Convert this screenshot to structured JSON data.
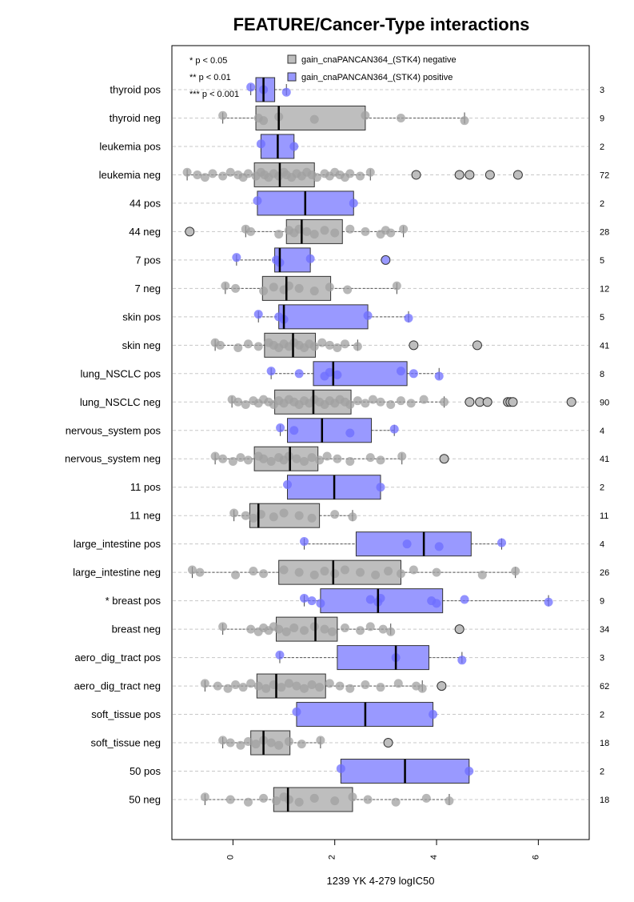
{
  "chart_data": {
    "type": "box",
    "title": "FEATURE/Cancer-Type interactions",
    "xlabel": "1239 YK 4-279 logIC50",
    "ylabel": "",
    "xlim": [
      -1.2,
      7.0
    ],
    "xticks": [
      0,
      2,
      4,
      6
    ],
    "orientation": "horizontal",
    "grid": "horizontal dashed",
    "legend_position": "top",
    "significance_key": [
      "* p < 0.05",
      "** p < 0.01",
      "*** p < 0.001"
    ],
    "series": [
      {
        "name": "gain_cnaPANCAN364_(STK4) negative",
        "color": "#bebebe"
      },
      {
        "name": "gain_cnaPANCAN364_(STK4) positive",
        "color": "#9999ff"
      }
    ],
    "rows": [
      {
        "label": "thyroid pos",
        "n": "3",
        "series": 1,
        "box": [
          0.35,
          0.45,
          0.6,
          0.82,
          1.05
        ],
        "points": [
          0.35,
          0.6,
          1.05
        ],
        "outliers": []
      },
      {
        "label": "thyroid neg",
        "n": "9",
        "series": 0,
        "box": [
          -0.2,
          0.45,
          0.9,
          2.6,
          4.55
        ],
        "points": [
          -0.2,
          0.5,
          0.6,
          0.9,
          1.6,
          2.6,
          3.3,
          4.55
        ],
        "outliers": []
      },
      {
        "label": "leukemia pos",
        "n": "2",
        "series": 1,
        "box": [
          0.55,
          0.55,
          0.88,
          1.2,
          1.2
        ],
        "points": [
          0.55,
          1.2
        ],
        "outliers": []
      },
      {
        "label": "leukemia neg",
        "n": "72",
        "series": 0,
        "box": [
          -0.9,
          0.42,
          0.92,
          1.6,
          2.7
        ],
        "points": [
          -0.9,
          -0.7,
          -0.55,
          -0.4,
          -0.2,
          -0.05,
          0.1,
          0.2,
          0.3,
          0.45,
          0.55,
          0.62,
          0.7,
          0.8,
          0.9,
          1.0,
          1.05,
          1.15,
          1.25,
          1.35,
          1.45,
          1.55,
          1.65,
          1.8,
          1.9,
          2.0,
          2.1,
          2.2,
          2.3,
          2.5,
          2.7
        ],
        "outliers": [
          3.6,
          4.45,
          4.65,
          5.05,
          5.6
        ]
      },
      {
        "label": "44 pos",
        "n": "2",
        "series": 1,
        "box": [
          0.48,
          0.48,
          1.42,
          2.37,
          2.37
        ],
        "points": [
          0.48,
          2.37
        ],
        "outliers": []
      },
      {
        "label": "44 neg",
        "n": "28",
        "series": 0,
        "box": [
          0.25,
          1.05,
          1.35,
          2.15,
          3.35
        ],
        "points": [
          0.25,
          0.35,
          0.9,
          1.1,
          1.2,
          1.3,
          1.45,
          1.6,
          1.8,
          2.0,
          2.3,
          2.6,
          2.9,
          3.0,
          3.1,
          3.35
        ],
        "outliers": [
          -0.85
        ]
      },
      {
        "label": "7 pos",
        "n": "5",
        "series": 1,
        "box": [
          0.07,
          0.82,
          0.92,
          1.52,
          1.52
        ],
        "points": [
          0.07,
          0.85,
          0.92,
          1.52
        ],
        "outliers": [
          3.0
        ]
      },
      {
        "label": "7 neg",
        "n": "12",
        "series": 0,
        "box": [
          -0.15,
          0.58,
          1.05,
          1.92,
          3.22
        ],
        "points": [
          -0.15,
          0.05,
          0.6,
          0.8,
          1.0,
          1.1,
          1.3,
          1.6,
          1.9,
          2.25,
          3.22
        ],
        "outliers": []
      },
      {
        "label": "skin pos",
        "n": "5",
        "series": 1,
        "box": [
          0.5,
          0.9,
          1.0,
          2.65,
          3.45
        ],
        "points": [
          0.5,
          0.9,
          1.0,
          2.65,
          3.45
        ],
        "outliers": []
      },
      {
        "label": "skin neg",
        "n": "41",
        "series": 0,
        "box": [
          -0.35,
          0.62,
          1.18,
          1.62,
          2.45
        ],
        "points": [
          -0.35,
          -0.25,
          0.1,
          0.3,
          0.5,
          0.7,
          0.8,
          0.9,
          1.0,
          1.1,
          1.2,
          1.3,
          1.4,
          1.5,
          1.6,
          1.75,
          1.9,
          2.05,
          2.2,
          2.45
        ],
        "outliers": [
          3.55,
          4.8
        ]
      },
      {
        "label": "lung_NSCLC pos",
        "n": "8",
        "series": 1,
        "box": [
          0.75,
          1.58,
          1.97,
          3.42,
          4.05
        ],
        "points": [
          0.75,
          1.3,
          1.8,
          1.9,
          2.05,
          3.3,
          3.55,
          4.05
        ],
        "outliers": []
      },
      {
        "label": "lung_NSCLC neg",
        "n": "90",
        "series": 0,
        "box": [
          -0.02,
          0.82,
          1.58,
          2.32,
          4.15
        ],
        "points": [
          -0.02,
          0.1,
          0.25,
          0.4,
          0.5,
          0.6,
          0.7,
          0.8,
          0.9,
          1.0,
          1.1,
          1.2,
          1.3,
          1.4,
          1.5,
          1.6,
          1.7,
          1.8,
          1.9,
          2.0,
          2.1,
          2.2,
          2.3,
          2.45,
          2.6,
          2.75,
          2.9,
          3.1,
          3.3,
          3.5,
          3.75,
          4.15
        ],
        "outliers": [
          4.65,
          4.85,
          5.0,
          5.4,
          5.45,
          5.5,
          6.65
        ]
      },
      {
        "label": "nervous_system pos",
        "n": "4",
        "series": 1,
        "box": [
          0.93,
          1.07,
          1.75,
          2.72,
          3.17
        ],
        "points": [
          0.93,
          1.2,
          2.3,
          3.17
        ],
        "outliers": []
      },
      {
        "label": "nervous_system neg",
        "n": "41",
        "series": 0,
        "box": [
          -0.35,
          0.42,
          1.12,
          1.67,
          3.32
        ],
        "points": [
          -0.35,
          -0.2,
          0.0,
          0.15,
          0.3,
          0.5,
          0.6,
          0.75,
          0.9,
          1.0,
          1.1,
          1.25,
          1.4,
          1.55,
          1.7,
          1.85,
          2.05,
          2.3,
          2.7,
          2.9,
          3.32
        ],
        "outliers": [
          4.15
        ]
      },
      {
        "label": "11 pos",
        "n": "2",
        "series": 1,
        "box": [
          1.07,
          1.07,
          1.99,
          2.9,
          2.9
        ],
        "points": [
          1.07,
          2.9
        ],
        "outliers": []
      },
      {
        "label": "11 neg",
        "n": "11",
        "series": 0,
        "box": [
          0.02,
          0.33,
          0.5,
          1.7,
          2.35
        ],
        "points": [
          0.02,
          0.25,
          0.4,
          0.55,
          0.8,
          1.0,
          1.3,
          1.55,
          2.0,
          2.35
        ],
        "outliers": []
      },
      {
        "label": "large_intestine pos",
        "n": "4",
        "series": 1,
        "box": [
          1.4,
          2.42,
          3.75,
          4.68,
          5.28
        ],
        "points": [
          1.4,
          3.42,
          4.05,
          5.28
        ],
        "outliers": []
      },
      {
        "label": "large_intestine neg",
        "n": "26",
        "series": 0,
        "box": [
          -0.8,
          0.9,
          1.97,
          3.3,
          5.55
        ],
        "points": [
          -0.8,
          -0.65,
          0.05,
          0.4,
          0.6,
          1.0,
          1.3,
          1.6,
          1.8,
          2.0,
          2.2,
          2.5,
          2.8,
          3.05,
          3.3,
          3.55,
          4.0,
          4.9,
          5.55
        ],
        "outliers": []
      },
      {
        "label": "* breast pos",
        "n": "9",
        "series": 1,
        "box": [
          1.4,
          1.72,
          2.85,
          4.12,
          6.2
        ],
        "points": [
          1.4,
          1.55,
          1.72,
          2.7,
          2.85,
          2.9,
          3.9,
          4.0,
          4.55,
          6.2
        ],
        "outliers": []
      },
      {
        "label": "breast neg",
        "n": "34",
        "series": 0,
        "box": [
          -0.2,
          0.85,
          1.62,
          2.05,
          3.1
        ],
        "points": [
          -0.2,
          0.35,
          0.5,
          0.6,
          0.7,
          0.8,
          0.9,
          1.05,
          1.2,
          1.4,
          1.6,
          1.8,
          1.95,
          2.2,
          2.5,
          2.7,
          2.95,
          3.1
        ],
        "outliers": [
          4.45
        ]
      },
      {
        "label": "aero_dig_tract pos",
        "n": "3",
        "series": 1,
        "box": [
          0.92,
          2.05,
          3.2,
          3.85,
          4.5
        ],
        "points": [
          0.92,
          3.2,
          4.5
        ],
        "outliers": []
      },
      {
        "label": "aero_dig_tract neg",
        "n": "62",
        "series": 0,
        "box": [
          -0.55,
          0.47,
          0.85,
          1.82,
          3.72
        ],
        "points": [
          -0.55,
          -0.3,
          -0.1,
          0.05,
          0.2,
          0.35,
          0.5,
          0.65,
          0.8,
          0.95,
          1.1,
          1.25,
          1.4,
          1.55,
          1.7,
          1.9,
          2.1,
          2.3,
          2.6,
          2.9,
          3.25,
          3.6,
          3.72
        ],
        "outliers": [
          4.1
        ]
      },
      {
        "label": "soft_tissue pos",
        "n": "2",
        "series": 1,
        "box": [
          1.25,
          1.25,
          2.6,
          3.93,
          3.93
        ],
        "points": [
          1.25,
          3.93
        ],
        "outliers": []
      },
      {
        "label": "soft_tissue neg",
        "n": "18",
        "series": 0,
        "box": [
          -0.2,
          0.35,
          0.6,
          1.12,
          1.72
        ],
        "points": [
          -0.2,
          -0.05,
          0.15,
          0.3,
          0.45,
          0.6,
          0.75,
          0.9,
          1.1,
          1.35,
          1.72
        ],
        "outliers": [
          3.05
        ]
      },
      {
        "label": "50 pos",
        "n": "2",
        "series": 1,
        "box": [
          2.12,
          2.12,
          3.38,
          4.64,
          4.64
        ],
        "points": [
          2.12,
          4.64
        ],
        "outliers": []
      },
      {
        "label": "50 neg",
        "n": "18",
        "series": 0,
        "box": [
          -0.55,
          0.8,
          1.08,
          2.35,
          4.25
        ],
        "points": [
          -0.55,
          -0.05,
          0.3,
          0.6,
          0.85,
          1.0,
          1.1,
          1.3,
          1.6,
          2.0,
          2.35,
          2.65,
          3.2,
          3.8,
          4.25
        ],
        "outliers": []
      }
    ]
  }
}
